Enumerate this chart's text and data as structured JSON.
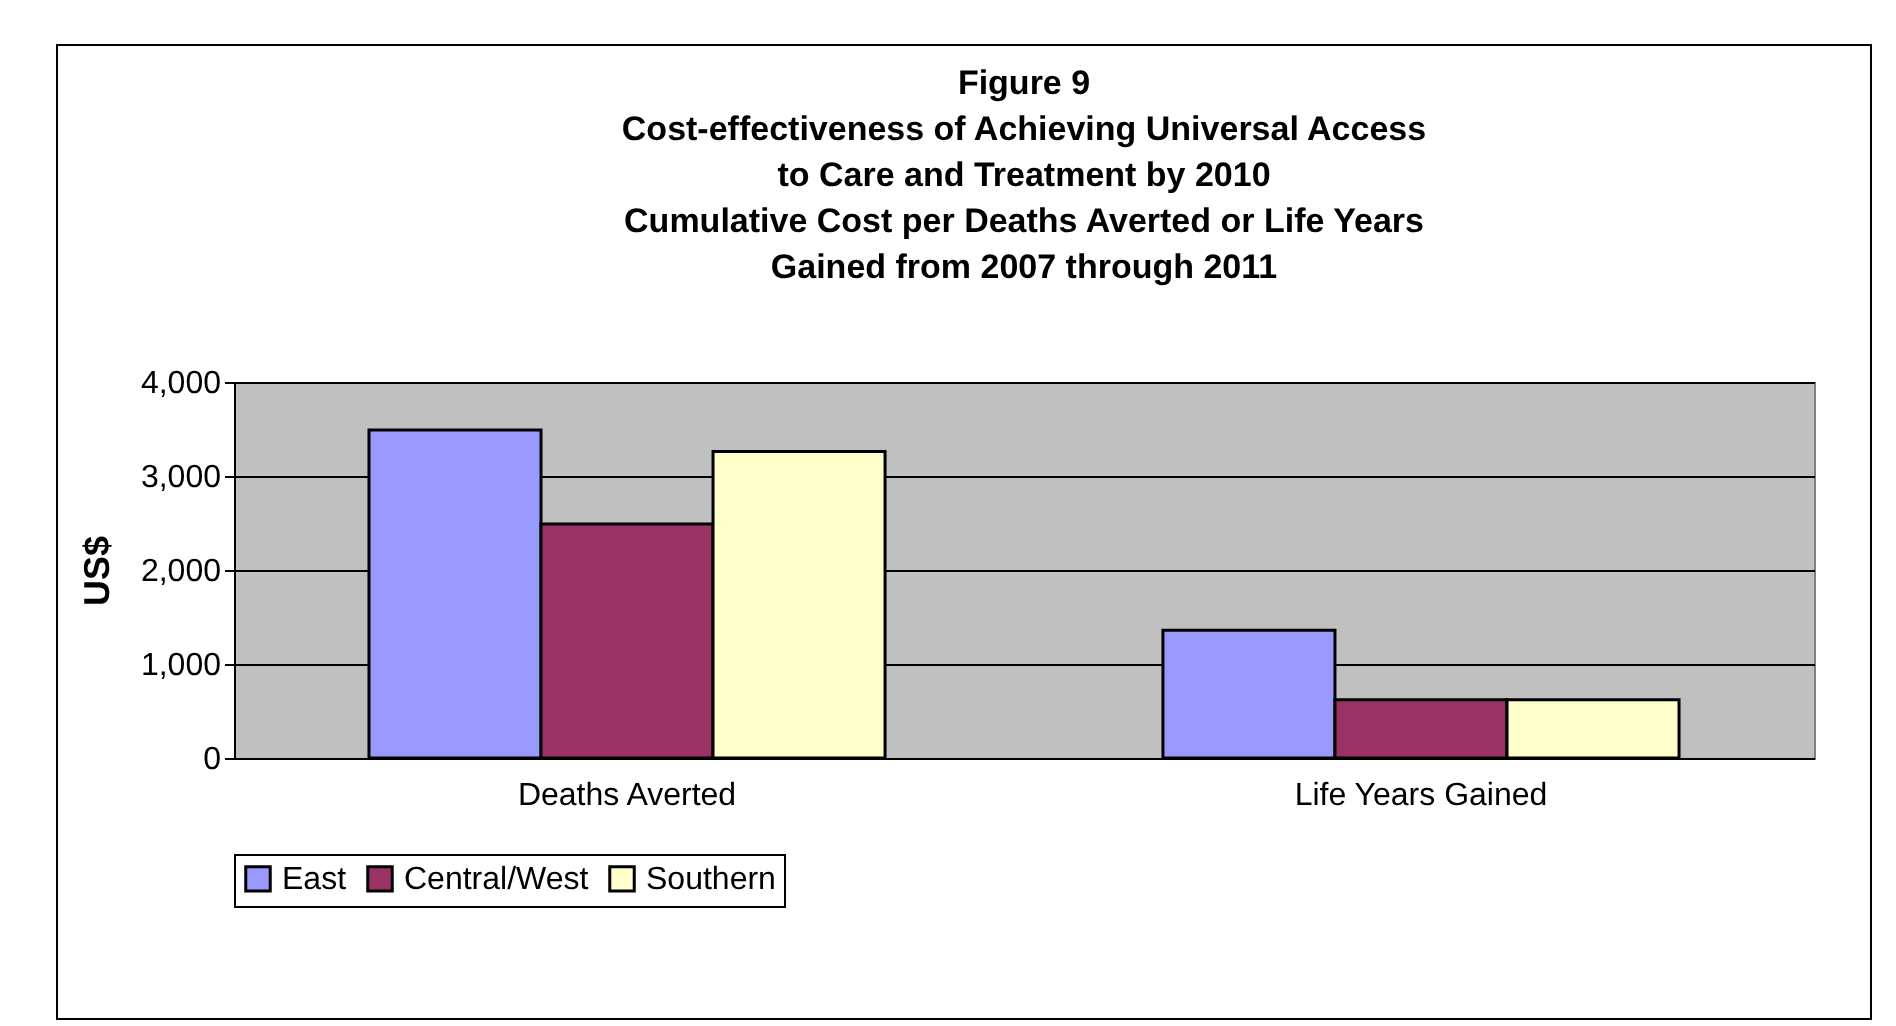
{
  "chart_data": {
    "type": "bar",
    "title": [
      "Figure 9",
      "Cost-effectiveness of Achieving Universal Access",
      "to Care and Treatment by 2010",
      "Cumulative Cost per Deaths Averted or Life Years",
      "Gained from 2007 through 2011"
    ],
    "ylabel": "US$",
    "categories": [
      "Deaths Averted",
      "Life Years Gained"
    ],
    "series": [
      {
        "name": "East",
        "color": "#9999ff",
        "values": [
          3490,
          1360
        ]
      },
      {
        "name": "Central/West",
        "color": "#993366",
        "values": [
          2490,
          620
        ]
      },
      {
        "name": "Southern",
        "color": "#ffffcc",
        "values": [
          3260,
          620
        ]
      }
    ],
    "ylim": [
      0,
      4000
    ],
    "yticks": [
      {
        "value": 0,
        "label": "0"
      },
      {
        "value": 1000,
        "label": "1,000"
      },
      {
        "value": 2000,
        "label": "2,000"
      },
      {
        "value": 3000,
        "label": "3,000"
      },
      {
        "value": 4000,
        "label": "4,000"
      }
    ],
    "grid": "y",
    "legend": "bottom"
  }
}
